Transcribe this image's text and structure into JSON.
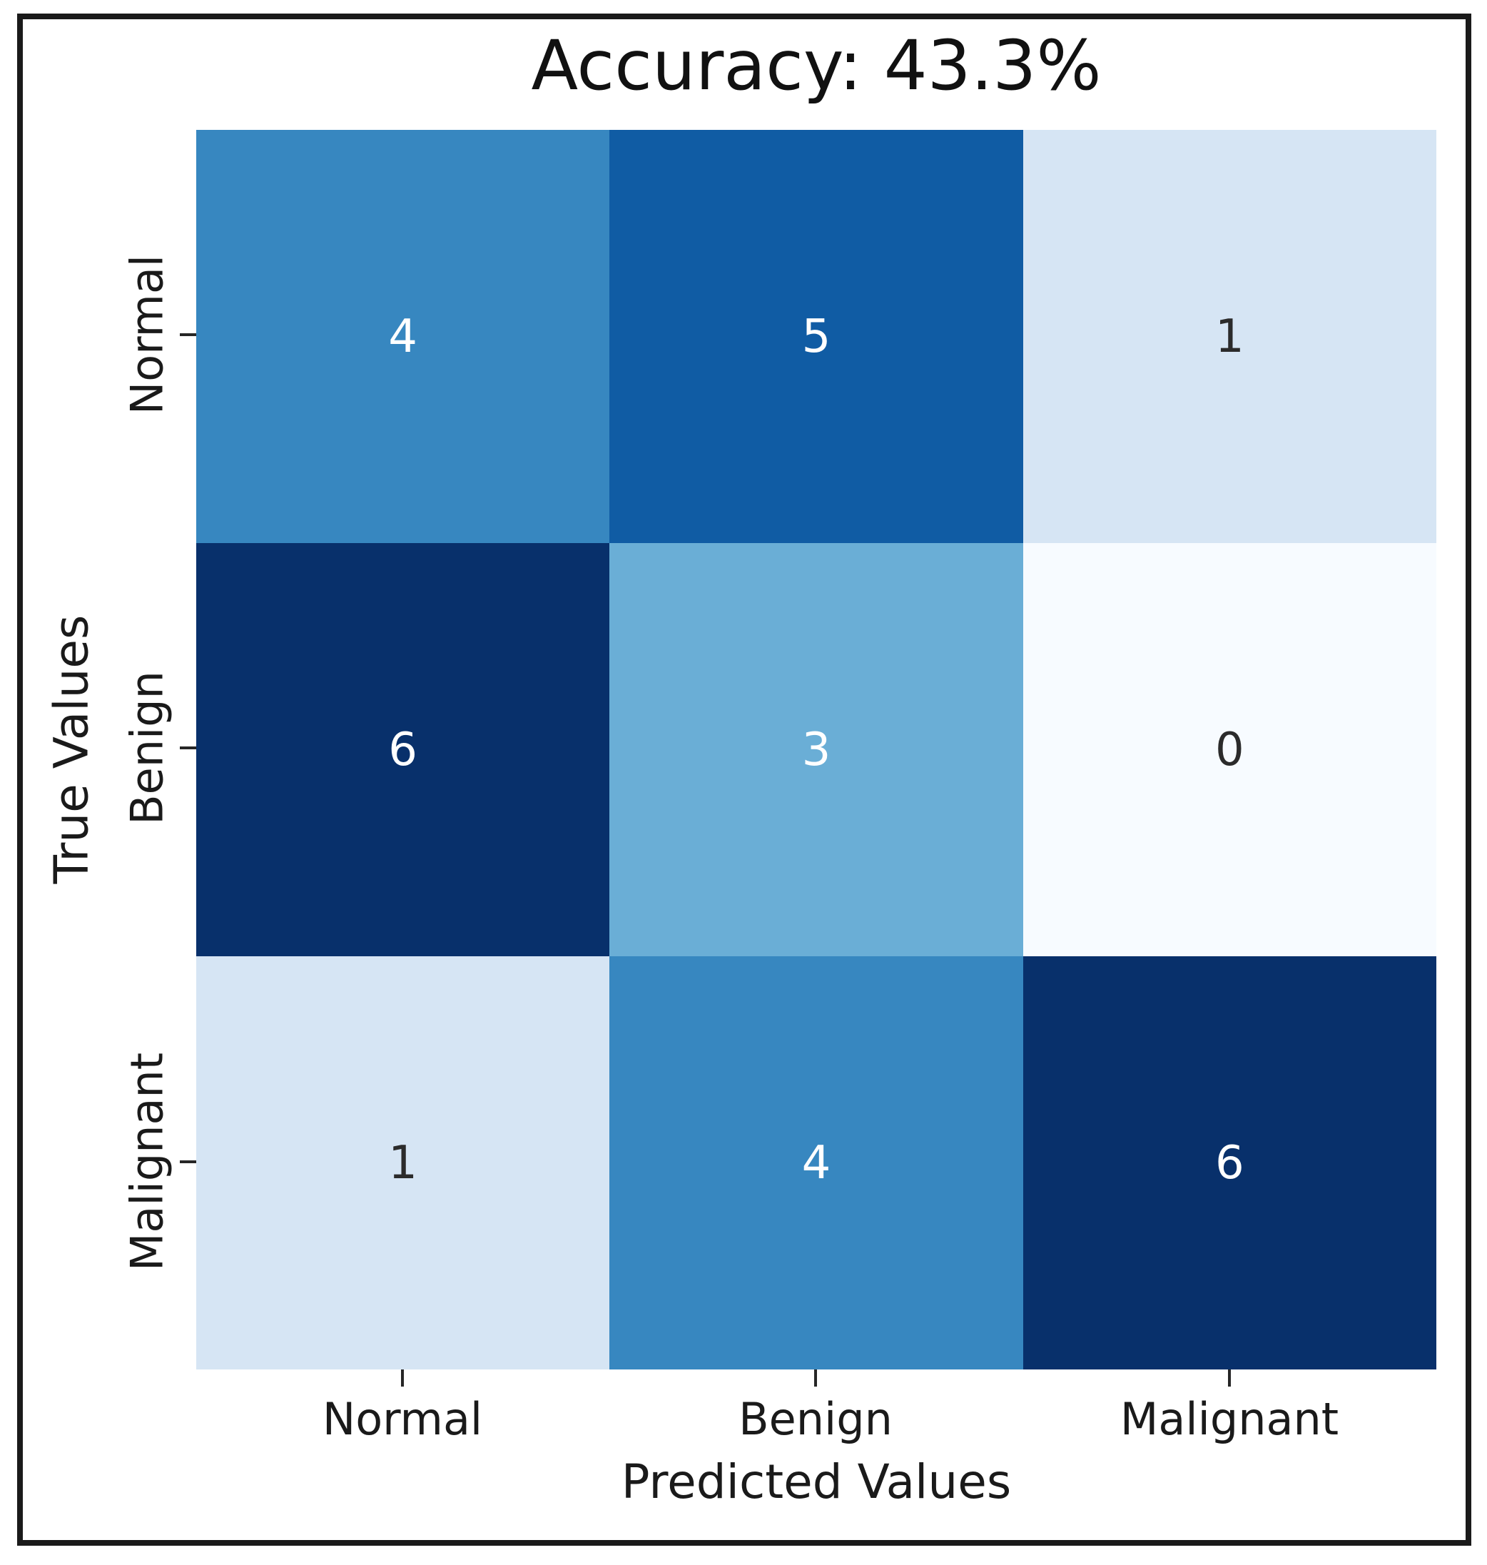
{
  "figure": {
    "background_color": "#ffffff",
    "frame_color": "#1a1a1a"
  },
  "chart_data": {
    "type": "heatmap",
    "title": "Accuracy: 43.3%",
    "accuracy_percent": 43.3,
    "xlabel": "Predicted Values",
    "ylabel": "True Values",
    "x_categories": [
      "Normal",
      "Benign",
      "Malignant"
    ],
    "y_categories": [
      "Normal",
      "Benign",
      "Malignant"
    ],
    "matrix": [
      [
        4,
        5,
        1
      ],
      [
        6,
        3,
        0
      ],
      [
        1,
        4,
        6
      ]
    ],
    "value_range": [
      0,
      6
    ],
    "colormap": "Blues",
    "grid": false,
    "legend": "none",
    "value_colors": {
      "0": "#f7fbff",
      "1": "#d6e5f4",
      "3": "#6aaed6",
      "4": "#3787c0",
      "5": "#105ca4",
      "6": "#08306b"
    },
    "annotation_light_color": "#ffffff",
    "annotation_dark_color": "#2b2b2b",
    "light_text_min_value": 3,
    "tick_color": "#262626",
    "label_color": "#1a1a1a"
  }
}
